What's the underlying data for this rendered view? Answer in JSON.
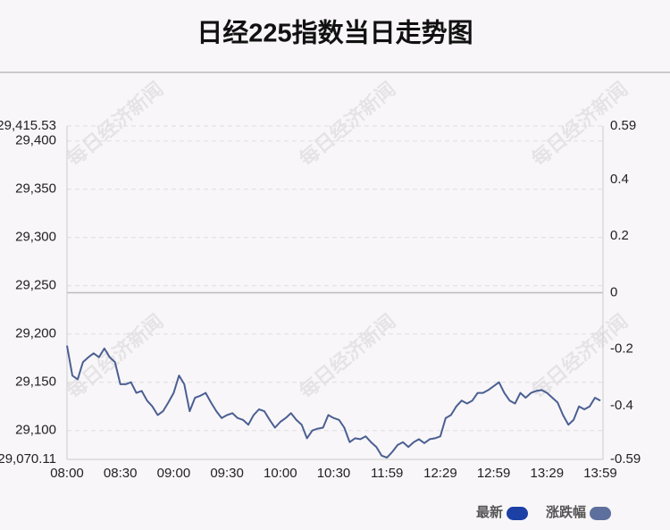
{
  "chart_data": {
    "type": "line",
    "title": "日经225指数当日走势图",
    "watermark": "每日经济新闻",
    "categories": [
      "08:00",
      null,
      null,
      null,
      null,
      null,
      null,
      null,
      null,
      null,
      "08:30",
      null,
      null,
      null,
      null,
      null,
      null,
      null,
      null,
      null,
      "09:00",
      null,
      null,
      null,
      null,
      null,
      null,
      null,
      null,
      null,
      "09:30",
      null,
      null,
      null,
      null,
      null,
      null,
      null,
      null,
      null,
      "10:00",
      null,
      null,
      null,
      null,
      null,
      null,
      null,
      null,
      null,
      "10:30",
      null,
      null,
      null,
      null,
      null,
      null,
      null,
      null,
      null,
      "11:59",
      null,
      null,
      null,
      null,
      null,
      null,
      null,
      null,
      null,
      "12:29",
      null,
      null,
      null,
      null,
      null,
      null,
      null,
      null,
      null,
      "12:59",
      null,
      null,
      null,
      null,
      null,
      null,
      null,
      null,
      null,
      "13:29",
      null,
      null,
      null,
      null,
      null,
      null,
      null,
      null,
      null,
      "13:59"
    ],
    "series": [
      {
        "name": "最新",
        "color": "#4b5f93",
        "values": [
          29188,
          29157,
          29153,
          29171,
          29176,
          29180,
          29176,
          29185,
          29176,
          29171,
          29148,
          29148,
          29150,
          29139,
          29141,
          29131,
          29125,
          29116,
          29120,
          29129,
          29139,
          29157,
          29148,
          29120,
          29134,
          29136,
          29139,
          29129,
          29120,
          29113,
          29116,
          29118,
          29113,
          29111,
          29106,
          29116,
          29122,
          29120,
          29111,
          29103,
          29109,
          29113,
          29118,
          29111,
          29106,
          29092,
          29100,
          29102,
          29103,
          29116,
          29113,
          29111,
          29103,
          29088,
          29092,
          29091,
          29094,
          29088,
          29083,
          29074,
          29072,
          29078,
          29085,
          29088,
          29083,
          29088,
          29091,
          29087,
          29091,
          29092,
          29094,
          29113,
          29116,
          29125,
          29131,
          29128,
          29131,
          29139,
          29139,
          29142,
          29146,
          29150,
          29139,
          29131,
          29128,
          29139,
          29134,
          29139,
          29141,
          29142,
          29139,
          29134,
          29129,
          29116,
          29106,
          29111,
          29125,
          29122,
          29125,
          29134,
          29131
        ]
      }
    ],
    "legend": [
      {
        "name": "最新",
        "color": "#1c40a6"
      },
      {
        "name": "涨跌幅",
        "color": "#5d6f9c"
      }
    ],
    "ylim": [
      29070.11,
      29415.53
    ],
    "yticks": [
      {
        "value": 29070.11,
        "label": "29,070.11"
      },
      {
        "value": 29100,
        "label": "29,100"
      },
      {
        "value": 29150,
        "label": "29,150"
      },
      {
        "value": 29200,
        "label": "29,200"
      },
      {
        "value": 29250,
        "label": "29,250"
      },
      {
        "value": 29300,
        "label": "29,300"
      },
      {
        "value": 29350,
        "label": "29,350"
      },
      {
        "value": 29400,
        "label": "29,400"
      },
      {
        "value": 29415.53,
        "label": "29,415.53"
      }
    ],
    "y2lim": [
      -0.59,
      0.59
    ],
    "y2ticks": [
      -0.59,
      -0.4,
      -0.2,
      0,
      0.2,
      0.4,
      0.59
    ],
    "grid": true
  }
}
